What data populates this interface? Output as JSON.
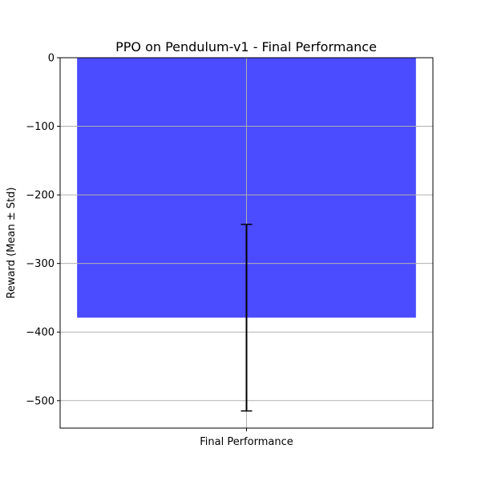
{
  "chart_data": {
    "type": "bar",
    "title": "PPO on Pendulum-v1 - Final Performance",
    "xlabel": "",
    "ylabel": "Reward (Mean ± Std)",
    "categories": [
      "Final Performance"
    ],
    "values": [
      -379
    ],
    "error": [
      136
    ],
    "ylim": [
      -540,
      0
    ],
    "yticks": [
      0,
      -100,
      -200,
      -300,
      -400,
      -500
    ],
    "ytick_labels": [
      "0",
      "−100",
      "−200",
      "−300",
      "−400",
      "−500"
    ],
    "grid": true,
    "bar_color": "#4b4bff",
    "error_color": "#000000",
    "grid_color": "#b0b0b0"
  }
}
